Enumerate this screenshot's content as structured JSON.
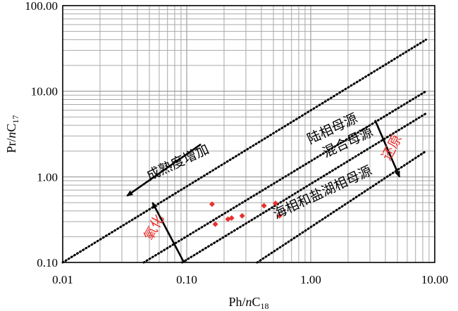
{
  "chart_data": {
    "type": "scatter",
    "x_axis": {
      "title_main": "Ph/",
      "title_italic": "n",
      "title_tail": "C",
      "title_sub": "18",
      "scale": "log",
      "range": [
        0.01,
        10
      ],
      "ticks": [
        "0.01",
        "0.10",
        "1.00",
        "10.00"
      ]
    },
    "y_axis": {
      "title_main": "Pr/",
      "title_italic": "n",
      "title_tail": "C",
      "title_sub": "17",
      "scale": "log",
      "range": [
        0.1,
        100
      ],
      "ticks": [
        "0.10",
        "1.00",
        "10.00",
        "100.00"
      ]
    },
    "grid": true,
    "points": [
      {
        "x": 0.16,
        "y": 0.48
      },
      {
        "x": 0.17,
        "y": 0.28
      },
      {
        "x": 0.215,
        "y": 0.32
      },
      {
        "x": 0.23,
        "y": 0.33
      },
      {
        "x": 0.28,
        "y": 0.35
      },
      {
        "x": 0.42,
        "y": 0.46
      },
      {
        "x": 0.52,
        "y": 0.49
      },
      {
        "x": 0.56,
        "y": 0.35
      }
    ],
    "marker_color": "#e8322e",
    "boundary_lines": [
      {
        "from": {
          "x": 0.01,
          "y": 0.1
        },
        "to": {
          "x": 8.5,
          "y": 40.0
        }
      },
      {
        "from": {
          "x": 0.045,
          "y": 0.1
        },
        "to": {
          "x": 8.5,
          "y": 10.0
        }
      },
      {
        "from": {
          "x": 0.092,
          "y": 0.1
        },
        "to": {
          "x": 8.5,
          "y": 5.5
        }
      },
      {
        "from": {
          "x": 0.37,
          "y": 0.1
        },
        "to": {
          "x": 8.5,
          "y": 2.0
        }
      }
    ],
    "annotations": [
      {
        "text": "成熟度增加",
        "x": 0.085,
        "y": 1.45,
        "angle": -25,
        "color": "#000000"
      },
      {
        "text": "陆相母源",
        "x": 1.5,
        "y": 3.6,
        "angle": -25,
        "color": "#000000"
      },
      {
        "text": "混合母源",
        "x": 2.0,
        "y": 2.5,
        "angle": -25,
        "color": "#000000"
      },
      {
        "text": "海相和盐湖相母源",
        "x": 1.25,
        "y": 0.65,
        "angle": -25,
        "color": "#000000"
      },
      {
        "text": "还原",
        "x": 4.55,
        "y": 2.2,
        "angle": -62,
        "color": "#e8322e"
      },
      {
        "text": "氧化",
        "x": 0.055,
        "y": 0.255,
        "angle": -62,
        "color": "#e8322e"
      }
    ],
    "arrows": [
      {
        "from": {
          "x": 0.13,
          "y": 2.4
        },
        "to": {
          "x": 0.033,
          "y": 0.6
        }
      },
      {
        "from": {
          "x": 3.3,
          "y": 4.6
        },
        "to": {
          "x": 5.2,
          "y": 1.0
        }
      },
      {
        "from": {
          "x": 0.095,
          "y": 0.1
        },
        "to": {
          "x": 0.053,
          "y": 0.5
        }
      }
    ]
  }
}
